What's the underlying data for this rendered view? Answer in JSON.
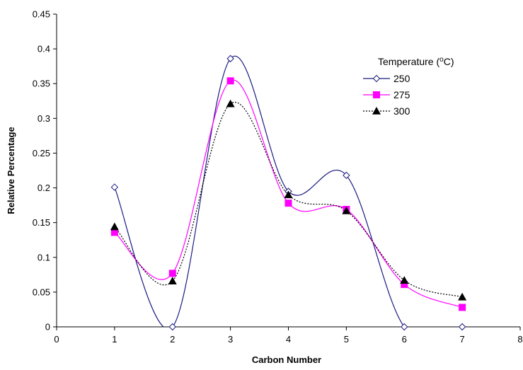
{
  "chart_data": {
    "type": "line",
    "xlabel": "Carbon Number",
    "ylabel": "Relative Percentage",
    "xlim": [
      0,
      8
    ],
    "ylim": [
      0,
      0.45
    ],
    "x_ticks": [
      "0",
      "1",
      "2",
      "3",
      "4",
      "5",
      "6",
      "7",
      "8"
    ],
    "y_ticks": [
      "0",
      "0.05",
      "0.1",
      "0.15",
      "0.2",
      "0.25",
      "0.3",
      "0.35",
      "0.4",
      "0.45"
    ],
    "grid": false,
    "legend_title": "Temperature (°C)",
    "legend_position": "top-right",
    "x": [
      1,
      2,
      3,
      4,
      5,
      6,
      7
    ],
    "series": [
      {
        "name": "250",
        "values": [
          0.201,
          0.0,
          0.386,
          0.195,
          0.218,
          0.0,
          0.0
        ],
        "color": "#1a1a80",
        "marker": "open-diamond",
        "line": "solid"
      },
      {
        "name": "275",
        "values": [
          0.136,
          0.077,
          0.354,
          0.178,
          0.169,
          0.061,
          0.028
        ],
        "color": "#ff00ff",
        "marker": "filled-square",
        "line": "solid"
      },
      {
        "name": "300",
        "values": [
          0.144,
          0.066,
          0.321,
          0.19,
          0.167,
          0.067,
          0.043
        ],
        "color": "#000000",
        "marker": "filled-triangle",
        "line": "dotted"
      }
    ]
  }
}
